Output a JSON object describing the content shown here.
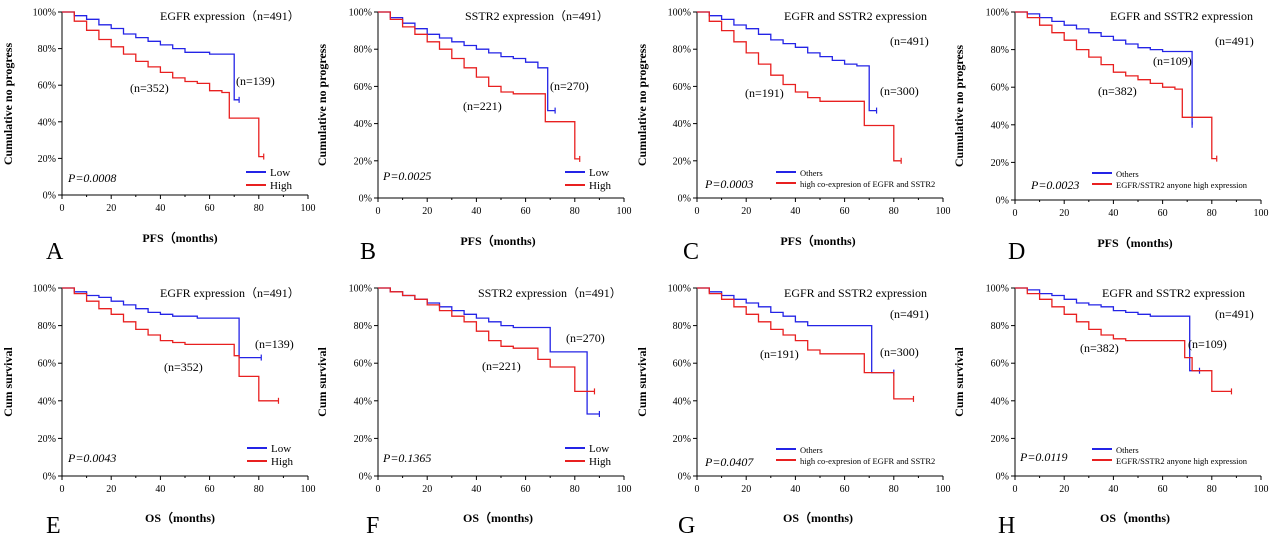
{
  "chart_data": [
    {
      "panel": "A",
      "type": "line",
      "title": "EGFR expression（n=491）",
      "xlabel": "PFS（months)",
      "ylabel": "Cumulative no progress",
      "xlim": [
        0,
        100
      ],
      "ylim": [
        0,
        100
      ],
      "xticks": [
        "0",
        "20",
        "40",
        "60",
        "80",
        "100"
      ],
      "yticks": [
        "0%",
        "20%",
        "40%",
        "60%",
        "80%",
        "100%"
      ],
      "p_value": "P=0.0008",
      "legend_placement": "bottom-right",
      "series": [
        {
          "name": "Low",
          "color": "#2424e6",
          "n_label": "(n=139)",
          "x": [
            0,
            5,
            10,
            15,
            20,
            25,
            30,
            35,
            40,
            45,
            50,
            55,
            60,
            65,
            70,
            70,
            72
          ],
          "y": [
            100,
            98,
            96,
            93,
            91,
            88,
            86,
            84,
            82,
            80,
            78,
            78,
            77,
            77,
            77,
            52,
            52
          ]
        },
        {
          "name": "High",
          "color": "#e82020",
          "n_label": "(n=352)",
          "x": [
            0,
            5,
            10,
            15,
            20,
            25,
            30,
            35,
            40,
            45,
            50,
            55,
            58,
            60,
            65,
            68,
            75,
            80,
            82
          ],
          "y": [
            100,
            95,
            90,
            85,
            81,
            77,
            73,
            70,
            67,
            64,
            62,
            61,
            61,
            57,
            56,
            42,
            42,
            21,
            21
          ]
        }
      ]
    },
    {
      "panel": "B",
      "type": "line",
      "title": "SSTR2 expression（n=491）",
      "xlabel": "PFS（months)",
      "ylabel": "Cumulative no progress",
      "xlim": [
        0,
        100
      ],
      "ylim": [
        0,
        100
      ],
      "xticks": [
        "0",
        "20",
        "40",
        "60",
        "80",
        "100"
      ],
      "yticks": [
        "0%",
        "20%",
        "40%",
        "60%",
        "80%",
        "100%"
      ],
      "p_value": "P=0.0025",
      "legend_placement": "bottom-right",
      "series": [
        {
          "name": "Low",
          "color": "#2424e6",
          "n_label": "(n=270)",
          "x": [
            0,
            5,
            10,
            15,
            20,
            25,
            30,
            35,
            40,
            45,
            50,
            55,
            60,
            65,
            69,
            69,
            72
          ],
          "y": [
            100,
            97,
            94,
            91,
            88,
            86,
            84,
            82,
            80,
            78,
            76,
            75,
            73,
            70,
            70,
            47,
            47
          ]
        },
        {
          "name": "High",
          "color": "#e82020",
          "n_label": "(n=221)",
          "x": [
            0,
            5,
            10,
            15,
            20,
            25,
            30,
            35,
            40,
            45,
            50,
            55,
            60,
            65,
            68,
            75,
            80,
            82
          ],
          "y": [
            100,
            96,
            92,
            88,
            84,
            80,
            75,
            70,
            65,
            60,
            57,
            56,
            56,
            56,
            41,
            41,
            21,
            21
          ]
        }
      ]
    },
    {
      "panel": "C",
      "type": "line",
      "title": "EGFR and SSTR2 expression",
      "n_total": "(n=491)",
      "xlabel": "PFS（months)",
      "ylabel": "Cumulative no progress",
      "xlim": [
        0,
        100
      ],
      "ylim": [
        0,
        100
      ],
      "xticks": [
        "0",
        "20",
        "40",
        "60",
        "80",
        "100"
      ],
      "yticks": [
        "0%",
        "20%",
        "40%",
        "60%",
        "80%",
        "100%"
      ],
      "p_value": "P=0.0003",
      "legend_placement": "bottom-right",
      "series": [
        {
          "name": "Others",
          "color": "#2424e6",
          "n_label": "(n=300)",
          "x": [
            0,
            5,
            10,
            15,
            20,
            25,
            30,
            35,
            40,
            45,
            50,
            55,
            60,
            65,
            70,
            70,
            73
          ],
          "y": [
            100,
            98,
            96,
            93,
            91,
            88,
            85,
            83,
            81,
            78,
            76,
            74,
            72,
            71,
            70,
            47,
            47
          ]
        },
        {
          "name": "high co-expresion of EGFR and SSTR2",
          "color": "#e82020",
          "n_label": "(n=191)",
          "x": [
            0,
            5,
            10,
            15,
            20,
            25,
            30,
            35,
            40,
            45,
            50,
            55,
            60,
            65,
            68,
            75,
            80,
            83
          ],
          "y": [
            100,
            95,
            90,
            84,
            78,
            72,
            66,
            61,
            57,
            54,
            52,
            52,
            52,
            52,
            39,
            39,
            20,
            20
          ]
        }
      ]
    },
    {
      "panel": "D",
      "type": "line",
      "title": "EGFR and SSTR2 expression",
      "n_total": "(n=491)",
      "xlabel": "PFS（months)",
      "ylabel": "Cumulative no progress",
      "xlim": [
        0,
        100
      ],
      "ylim": [
        0,
        100
      ],
      "xticks": [
        "0",
        "20",
        "40",
        "60",
        "80",
        "100"
      ],
      "yticks": [
        "0%",
        "20%",
        "40%",
        "60%",
        "80%",
        "100%"
      ],
      "p_value": "P=0.0023",
      "legend_placement": "bottom-right",
      "series": [
        {
          "name": "Others",
          "color": "#2424e6",
          "n_label": "(n=109)",
          "x": [
            0,
            5,
            10,
            15,
            20,
            25,
            30,
            35,
            40,
            45,
            50,
            55,
            60,
            65,
            70,
            72,
            72
          ],
          "y": [
            100,
            99,
            97,
            95,
            93,
            91,
            89,
            87,
            85,
            83,
            81,
            80,
            79,
            79,
            79,
            79,
            40
          ]
        },
        {
          "name": "EGFR/SSTR2 anyone high expression",
          "color": "#e82020",
          "n_label": "(n=382)",
          "x": [
            0,
            5,
            10,
            15,
            20,
            25,
            30,
            35,
            40,
            45,
            50,
            55,
            60,
            65,
            68,
            75,
            80,
            82
          ],
          "y": [
            100,
            97,
            93,
            89,
            85,
            80,
            76,
            72,
            68,
            66,
            64,
            62,
            60,
            59,
            44,
            44,
            22,
            22
          ]
        }
      ]
    },
    {
      "panel": "E",
      "type": "line",
      "title": "EGFR expression（n=491）",
      "xlabel": "OS（months)",
      "ylabel": "Cum survival",
      "xlim": [
        0,
        100
      ],
      "ylim": [
        0,
        100
      ],
      "xticks": [
        "0",
        "20",
        "40",
        "60",
        "80",
        "100"
      ],
      "yticks": [
        "0%",
        "20%",
        "40%",
        "60%",
        "80%",
        "100%"
      ],
      "p_value": "P=0.0043",
      "legend_placement": "bottom-right",
      "series": [
        {
          "name": "Low",
          "color": "#2424e6",
          "n_label": "(n=139)",
          "x": [
            0,
            5,
            10,
            15,
            20,
            25,
            30,
            35,
            40,
            45,
            50,
            55,
            60,
            65,
            70,
            72,
            72,
            81
          ],
          "y": [
            100,
            98,
            96,
            95,
            93,
            91,
            89,
            87,
            86,
            85,
            85,
            84,
            84,
            84,
            84,
            84,
            63,
            63
          ]
        },
        {
          "name": "High",
          "color": "#e82020",
          "n_label": "(n=352)",
          "x": [
            0,
            5,
            10,
            15,
            20,
            25,
            30,
            35,
            40,
            45,
            50,
            55,
            60,
            65,
            70,
            72,
            79,
            80,
            88
          ],
          "y": [
            100,
            97,
            93,
            89,
            86,
            82,
            78,
            75,
            72,
            71,
            70,
            70,
            70,
            70,
            64,
            53,
            53,
            40,
            40
          ]
        }
      ]
    },
    {
      "panel": "F",
      "type": "line",
      "title": "SSTR2 expression（n=491）",
      "xlabel": "OS（months)",
      "ylabel": "Cum survival",
      "xlim": [
        0,
        100
      ],
      "ylim": [
        0,
        100
      ],
      "xticks": [
        "0",
        "20",
        "40",
        "60",
        "80",
        "100"
      ],
      "yticks": [
        "0%",
        "20%",
        "40%",
        "60%",
        "80%",
        "100%"
      ],
      "p_value": "P=0.1365",
      "legend_placement": "bottom-right",
      "series": [
        {
          "name": "Low",
          "color": "#2424e6",
          "n_label": "(n=270)",
          "x": [
            0,
            5,
            10,
            15,
            20,
            25,
            30,
            35,
            40,
            45,
            50,
            55,
            60,
            65,
            70,
            70,
            85,
            85,
            90
          ],
          "y": [
            100,
            98,
            96,
            94,
            92,
            90,
            88,
            86,
            84,
            82,
            80,
            79,
            79,
            79,
            79,
            66,
            66,
            33,
            33
          ]
        },
        {
          "name": "High",
          "color": "#e82020",
          "n_label": "(n=221)",
          "x": [
            0,
            5,
            10,
            15,
            20,
            25,
            30,
            35,
            40,
            45,
            50,
            55,
            60,
            65,
            70,
            79,
            80,
            88
          ],
          "y": [
            100,
            98,
            96,
            94,
            91,
            88,
            85,
            82,
            77,
            72,
            69,
            68,
            68,
            62,
            58,
            58,
            45,
            45
          ]
        }
      ]
    },
    {
      "panel": "G",
      "type": "line",
      "title": "EGFR and SSTR2 expression",
      "n_total": "(n=491)",
      "xlabel": "OS（months)",
      "ylabel": "Cum survival",
      "xlim": [
        0,
        100
      ],
      "ylim": [
        0,
        100
      ],
      "xticks": [
        "0",
        "20",
        "40",
        "60",
        "80",
        "100"
      ],
      "yticks": [
        "0%",
        "20%",
        "40%",
        "60%",
        "80%",
        "100%"
      ],
      "p_value": "P=0.0407",
      "legend_placement": "bottom-right",
      "series": [
        {
          "name": "Others",
          "color": "#2424e6",
          "n_label": "(n=300)",
          "x": [
            0,
            5,
            10,
            15,
            20,
            25,
            30,
            35,
            40,
            45,
            50,
            55,
            60,
            65,
            70,
            71,
            71,
            80
          ],
          "y": [
            100,
            98,
            96,
            94,
            92,
            90,
            87,
            85,
            82,
            80,
            80,
            80,
            80,
            80,
            80,
            80,
            55,
            55
          ]
        },
        {
          "name": "high co-expresion of EGFR and SSTR2",
          "color": "#e82020",
          "n_label": "(n=191)",
          "x": [
            0,
            5,
            10,
            15,
            20,
            25,
            30,
            35,
            40,
            45,
            50,
            55,
            60,
            65,
            68,
            72,
            79,
            80,
            88
          ],
          "y": [
            100,
            97,
            94,
            90,
            86,
            82,
            78,
            75,
            72,
            67,
            65,
            65,
            65,
            65,
            55,
            55,
            55,
            41,
            41
          ]
        }
      ]
    },
    {
      "panel": "H",
      "type": "line",
      "title": "EGFR and SSTR2 expression",
      "n_total": "(n=491)",
      "xlabel": "OS（months)",
      "ylabel": "Cum survival",
      "xlim": [
        0,
        100
      ],
      "ylim": [
        0,
        100
      ],
      "xticks": [
        "0",
        "20",
        "40",
        "60",
        "80",
        "100"
      ],
      "yticks": [
        "0%",
        "20%",
        "40%",
        "60%",
        "80%",
        "100%"
      ],
      "p_value": "P=0.0119",
      "legend_placement": "bottom-right",
      "series": [
        {
          "name": "Others",
          "color": "#2424e6",
          "n_label": "(n=109)",
          "x": [
            0,
            5,
            10,
            15,
            20,
            25,
            30,
            35,
            40,
            45,
            50,
            55,
            60,
            65,
            70,
            71,
            71,
            75
          ],
          "y": [
            100,
            99,
            97,
            96,
            94,
            92,
            91,
            90,
            88,
            87,
            86,
            85,
            85,
            85,
            85,
            85,
            56,
            56
          ]
        },
        {
          "name": "EGFR/SSTR2 anyone high expression",
          "color": "#e82020",
          "n_label": "(n=382)",
          "x": [
            0,
            5,
            10,
            15,
            20,
            25,
            30,
            35,
            40,
            45,
            50,
            55,
            60,
            65,
            69,
            72,
            79,
            80,
            88
          ],
          "y": [
            100,
            97,
            94,
            90,
            86,
            82,
            78,
            75,
            73,
            72,
            72,
            72,
            72,
            72,
            63,
            56,
            56,
            45,
            45
          ]
        }
      ]
    }
  ]
}
